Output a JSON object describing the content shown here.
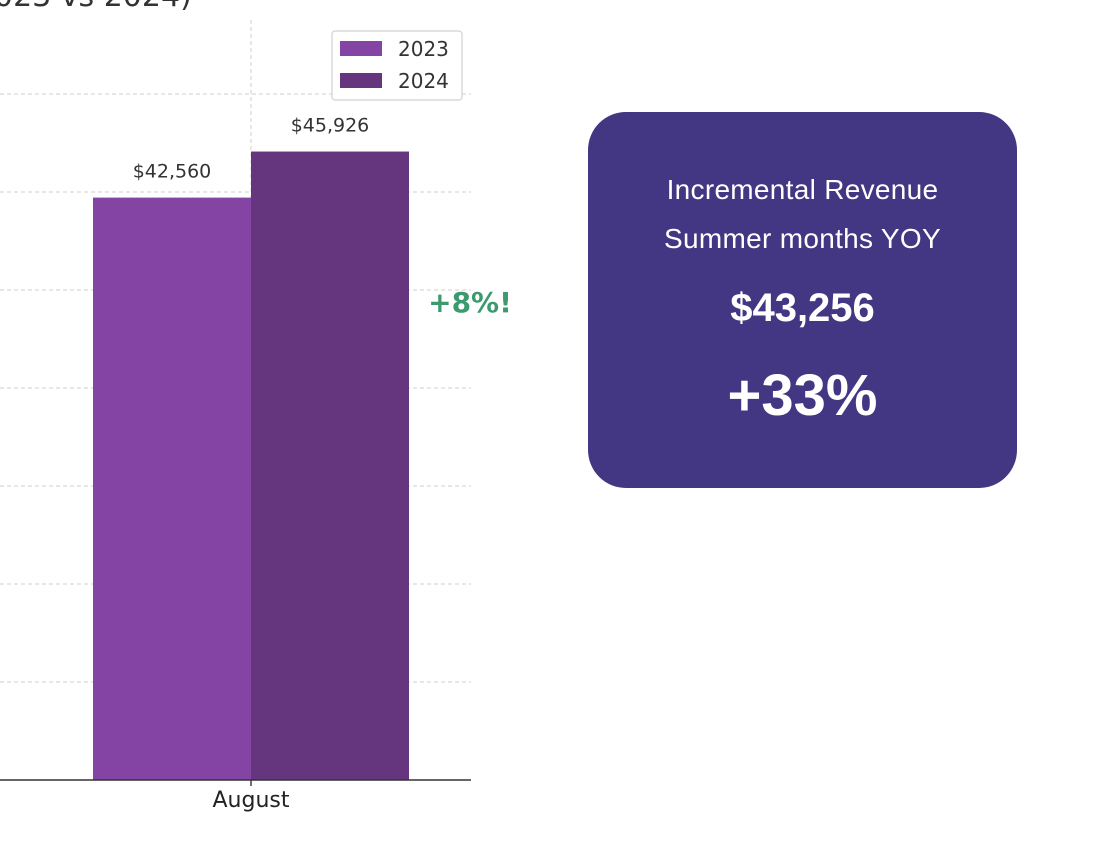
{
  "chart_data": {
    "type": "bar",
    "title": "023 vs 2024)",
    "categories": [
      "August"
    ],
    "series": [
      {
        "name": "2023",
        "values": [
          42560
        ],
        "labels": [
          "$42,560"
        ],
        "color": "#8444a3"
      },
      {
        "name": "2024",
        "values": [
          45926
        ],
        "labels": [
          "$45,926"
        ],
        "color": "#65367d"
      }
    ],
    "annotation": "+8%!",
    "annotation_color": "#3c9a6e",
    "ylim": [
      0,
      57000
    ],
    "grid": true,
    "legend_position": "top-right",
    "xlabel": "",
    "ylabel": ""
  },
  "summary_card": {
    "line1": "Incremental Revenue",
    "line2": "Summer months YOY",
    "amount": "$43,256",
    "percent": "+33%",
    "background": "#433783"
  }
}
